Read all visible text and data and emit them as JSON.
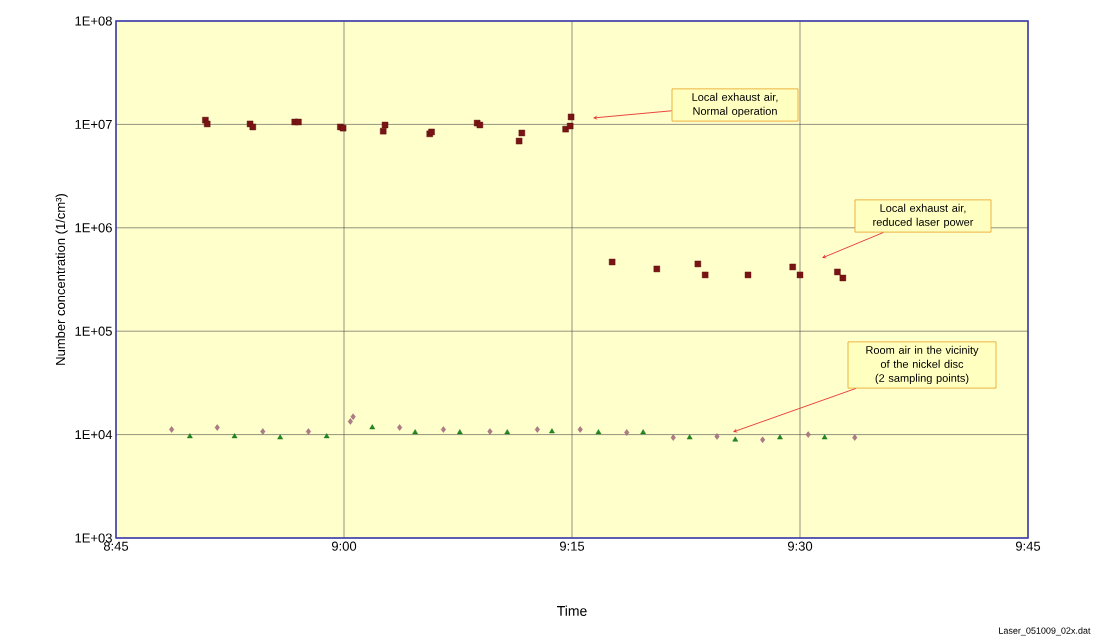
{
  "chart_data": {
    "type": "scatter",
    "xlabel": "Time",
    "ylabel": "Number concentration (1/cm³)",
    "log": "y",
    "grid": true,
    "xlim": [
      8.75,
      9.75
    ],
    "xticks": [
      {
        "value": 8.75,
        "label": "8:45"
      },
      {
        "value": 9.0,
        "label": "9:00"
      },
      {
        "value": 9.25,
        "label": "9:15"
      },
      {
        "value": 9.5,
        "label": "9:30"
      },
      {
        "value": 9.75,
        "label": "9:45"
      }
    ],
    "ylim": [
      1000,
      100000000
    ],
    "yticks": [
      {
        "value": 1000,
        "label": "1E+03"
      },
      {
        "value": 10000,
        "label": "1E+04"
      },
      {
        "value": 100000,
        "label": "1E+05"
      },
      {
        "value": 1000000,
        "label": "1E+06"
      },
      {
        "value": 10000000,
        "label": "1E+07"
      },
      {
        "value": 100000000,
        "label": "1E+08"
      }
    ],
    "series": [
      {
        "color": "#7a1414",
        "marker": "square",
        "x": [
          8.848,
          8.85,
          8.897,
          8.9,
          8.946,
          8.95,
          8.996,
          8.999,
          9.045,
          9.043,
          9.094,
          9.096,
          9.146,
          9.149,
          9.195,
          9.192,
          9.243,
          9.248,
          9.249
        ],
        "values": [
          11000000,
          10100000,
          10100000,
          9440000,
          10550000,
          10550000,
          9440000,
          9200000,
          9870000,
          8600000,
          8100000,
          8450000,
          10300000,
          9870000,
          8260000,
          6900000,
          9000000,
          9650000,
          11800000
        ]
      },
      {
        "color": "#7a1414",
        "marker": "square",
        "x": [
          9.294,
          9.343,
          9.388,
          9.396,
          9.443,
          9.492,
          9.5,
          9.541,
          9.547
        ],
        "values": [
          467000,
          400000,
          447000,
          350000,
          350000,
          418000,
          350000,
          374000,
          327000
        ]
      },
      {
        "color": "#b07a88",
        "marker": "diamond",
        "x": [
          8.811,
          8.861,
          8.911,
          8.961,
          9.007,
          9.01,
          9.061,
          9.109,
          9.16,
          9.212,
          9.259,
          9.31,
          9.361,
          9.409,
          9.459,
          9.509,
          9.56
        ],
        "values": [
          11200,
          11700,
          10700,
          10700,
          13400,
          14900,
          11700,
          11200,
          10700,
          11200,
          11200,
          10500,
          9350,
          9600,
          8900,
          10000,
          9350
        ]
      },
      {
        "color": "#1e8c1e",
        "marker": "triangle",
        "x": [
          8.831,
          8.88,
          8.93,
          8.981,
          9.031,
          9.078,
          9.127,
          9.179,
          9.228,
          9.279,
          9.328,
          9.379,
          9.429,
          9.478,
          9.527
        ],
        "values": [
          9600,
          9600,
          9350,
          9600,
          11700,
          10500,
          10500,
          10500,
          10700,
          10500,
          10500,
          9350,
          8900,
          9350,
          9350
        ]
      }
    ],
    "annotations": [
      "Local exhaust air, Normal operation",
      "Local exhaust air, reduced laser power",
      "Room air in the vicinity of the nickel disc (2 sampling points)",
      "Laser_051009_02x.dat"
    ]
  }
}
